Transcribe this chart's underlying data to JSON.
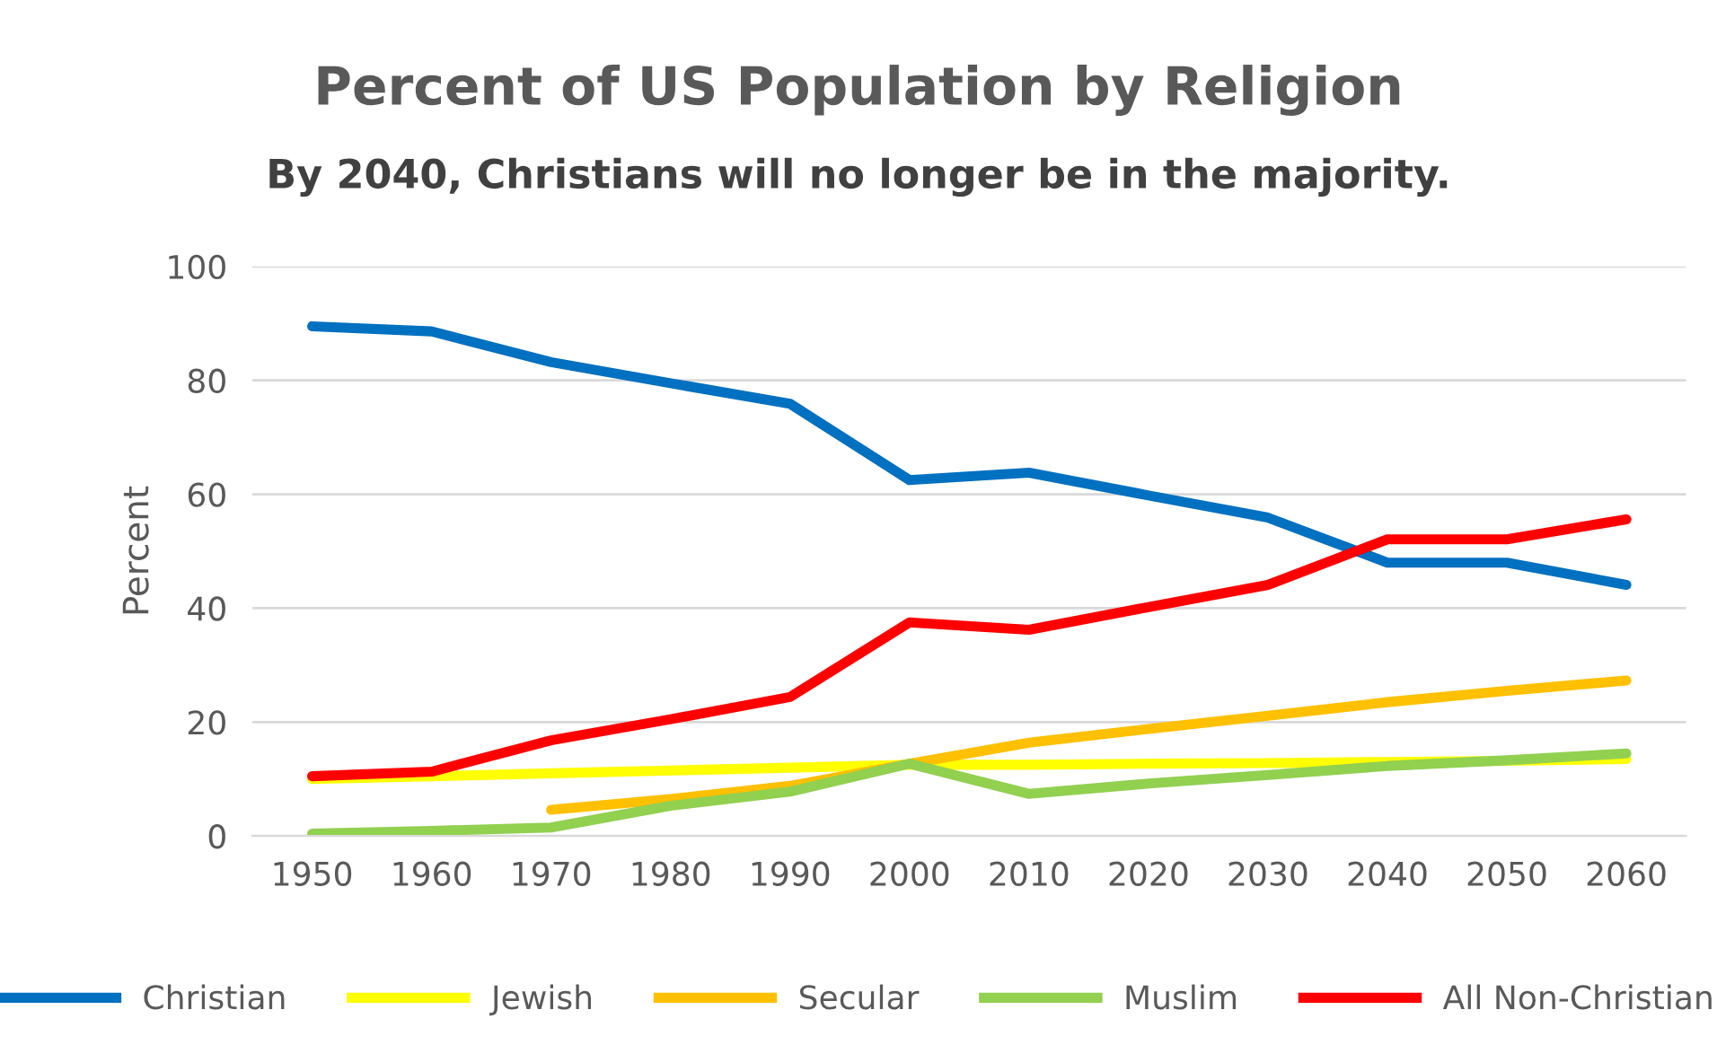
{
  "chart_data": {
    "type": "line",
    "title": "Percent of US Population by Religion",
    "subtitle": "By 2040, Christians will no longer be in the majority.",
    "ylabel": "Percent",
    "categories": [
      "1950",
      "1960",
      "1970",
      "1980",
      "1990",
      "2000",
      "2010",
      "2020",
      "2030",
      "2040",
      "2050",
      "2060"
    ],
    "series": [
      {
        "name": "Christian",
        "color": "#0070c0",
        "values": [
          89.5,
          88.6,
          83.2,
          79.5,
          75.9,
          62.5,
          63.8,
          59.8,
          55.9,
          48,
          48,
          44.1
        ]
      },
      {
        "name": "Jewish",
        "color": "#ffff00",
        "values": [
          10,
          10.5,
          11,
          11.5,
          12,
          12.5,
          12.5,
          12.7,
          12.8,
          13,
          13.2,
          13.5
        ]
      },
      {
        "name": "Secular",
        "color": "#ffc000",
        "values": [
          null,
          null,
          4.6,
          6.5,
          8.8,
          12.7,
          16.4,
          18.8,
          21.1,
          23.5,
          25.5,
          27.3
        ]
      },
      {
        "name": "Muslim",
        "color": "#92d050",
        "values": [
          0.4,
          0.9,
          1.5,
          5.3,
          7.8,
          12.7,
          7.4,
          9.2,
          10.7,
          12.3,
          13.3,
          14.5
        ]
      },
      {
        "name": "All Non-Christian",
        "color": "#ff0000",
        "values": [
          10.5,
          11.3,
          16.8,
          20.5,
          24.4,
          37.5,
          36.2,
          40.2,
          44.1,
          52.1,
          52.1,
          55.6
        ]
      }
    ],
    "ylim": [
      0,
      100
    ],
    "yticks": [
      0,
      20,
      40,
      60,
      80,
      100
    ],
    "grid": "y",
    "legend": "bottom",
    "marker": "none",
    "line_style": "solid"
  }
}
